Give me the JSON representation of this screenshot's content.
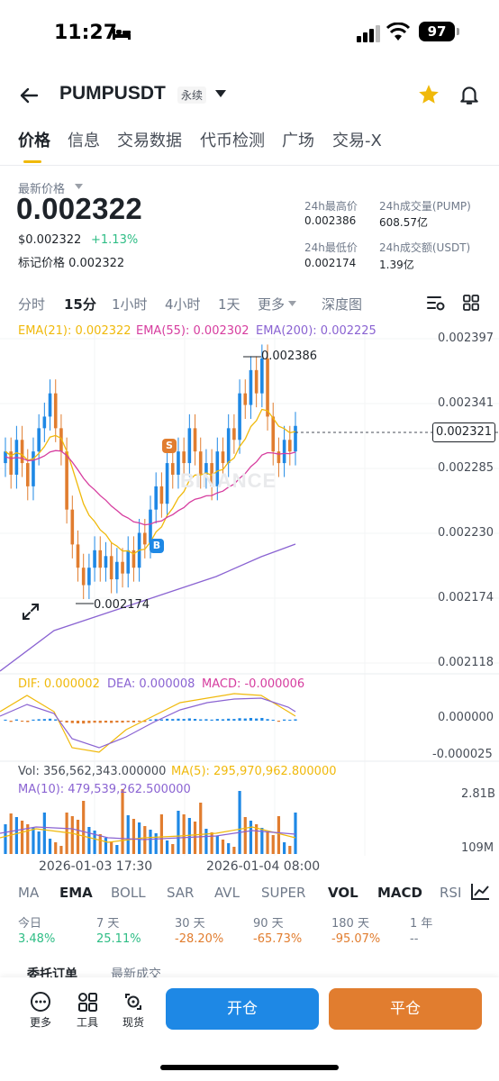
{
  "status_bar": {
    "time": "11:27",
    "battery": "97"
  },
  "header": {
    "pair": "PUMPUSDT",
    "contract_tag": "永续"
  },
  "tabs": [
    "价格",
    "信息",
    "交易数据",
    "代币检测",
    "广场",
    "交易-X"
  ],
  "price": {
    "label": "最新价格",
    "last": "0.002322",
    "usd": "$0.002322",
    "change": "+1.13%",
    "mark": "标记价格 0.002322"
  },
  "stats": {
    "high_label": "24h最高价",
    "high": "0.002386",
    "low_label": "24h最低价",
    "low": "0.002174",
    "vol_label": "24h成交量(PUMP)",
    "vol": "608.57亿",
    "turnover_label": "24h成交额(USDT)",
    "turnover": "1.39亿"
  },
  "timeframes": [
    "分时",
    "15分",
    "1小时",
    "4小时",
    "1天",
    "更多",
    "深度图"
  ],
  "ema_legend": {
    "ema21": "EMA(21): 0.002322",
    "ema55": "EMA(55): 0.002302",
    "ema200": "EMA(200): 0.002225"
  },
  "price_axis": [
    "0.002397",
    "0.002341",
    "0.002285",
    "0.002230",
    "0.002174",
    "0.002118"
  ],
  "current_price_tag": "0.002321",
  "high_mark": "0.002386",
  "low_mark": "0.002174",
  "markers": {
    "sell": "S",
    "buy": "B"
  },
  "watermark": "BINANCE",
  "macd_legend": {
    "dif": "DIF: 0.000002",
    "dea": "DEA: 0.000008",
    "macd": "MACD: -0.000006"
  },
  "macd_axis": [
    "0.000000",
    "-0.000025"
  ],
  "vol_legend": {
    "vol": "Vol: 356,562,343.000000",
    "ma5": "MA(5): 295,970,962.800000",
    "ma10": "MA(10): 479,539,262.500000"
  },
  "vol_axis": [
    "2.81B",
    "109M"
  ],
  "dates": [
    "2026-01-03 17:30",
    "2026-01-04 08:00"
  ],
  "indicators": [
    "MA",
    "EMA",
    "BOLL",
    "SAR",
    "AVL",
    "SUPER",
    "VOL",
    "MACD",
    "RSI"
  ],
  "performance": [
    {
      "label": "今日",
      "value": "3.48%"
    },
    {
      "label": "7 天",
      "value": "25.11%"
    },
    {
      "label": "30 天",
      "value": "-28.20%"
    },
    {
      "label": "90 天",
      "value": "-65.73%"
    },
    {
      "label": "180 天",
      "value": "-95.07%"
    },
    {
      "label": "1 年",
      "value": "--"
    }
  ],
  "order_tabs": [
    "委托订单",
    "最新成交"
  ],
  "bottom": {
    "more": "更多",
    "tools": "工具",
    "spot": "现货",
    "open": "开仓",
    "close": "平仓"
  },
  "colors": {
    "up": "#2ebd85",
    "down": "#f6465d",
    "candle_up": "#1e88e5",
    "candle_down": "#e17d2f",
    "ema21": "#f0b90b",
    "ema55": "#d63d9f",
    "ema200": "#8a63d2",
    "accent": "#f0b90b"
  }
}
